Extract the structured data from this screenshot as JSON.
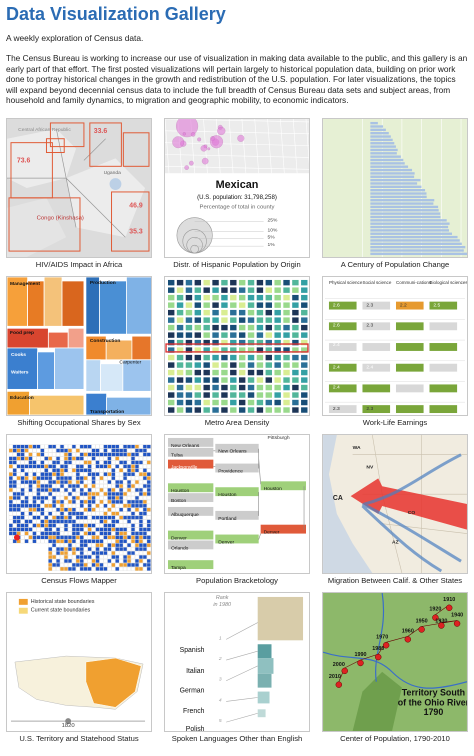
{
  "header": {
    "title": "Data Visualization Gallery",
    "subtitle": "A weekly exploration of Census data.",
    "intro": "The Census Bureau is working to increase our use of visualization in making data available to the public, and this gallery is an early part of that effort. The first posted visualizations will pertain largely to historical population data, building on prior work done to portray historical changes in the growth and redistribution of the U.S. population. For later visualizations, the topics will expand beyond decennial census data to include the full breadth of Census Bureau data sets and subject areas, from household and family dynamics, to migration and geographic mobility, to economic indicators."
  },
  "gallery": {
    "items": [
      {
        "caption": "HIV/AIDS Impact in Africa",
        "labels": [
          "Central African Republic",
          "33.6",
          "73.6",
          "Uganda",
          "Congo (Kinshasa)",
          "46.9",
          "35.3"
        ]
      },
      {
        "caption": "Distr. of Hispanic Population by Origin",
        "labels": [
          "Mexican",
          "(U.S. population: 31,798,258)",
          "Percentage of total in county",
          "25%",
          "10%",
          "5%",
          "1%"
        ]
      },
      {
        "caption": "A Century of Population Change",
        "labels": []
      },
      {
        "caption": "Shifting Occupational Shares by Sex",
        "labels": [
          "Management",
          "Production",
          "Food prep",
          "Cooks",
          "Waiters",
          "Construction",
          "Carpenter",
          "Education",
          "Transportation"
        ]
      },
      {
        "caption": "Metro Area Density",
        "labels": []
      },
      {
        "caption": "Work-Life Earnings",
        "labels": [
          "Physical science",
          "Social science",
          "Communi-cations",
          "Biological sciences",
          "2.6",
          "2.3",
          "2.2",
          "2.5",
          "2.6",
          "2.3",
          "2.4",
          "2.4",
          "2.4",
          "2.4",
          "2.3",
          "2.3"
        ]
      },
      {
        "caption": "Census Flows Mapper",
        "labels": []
      },
      {
        "caption": "Population Bracketology",
        "labels": [
          "Pittsburgh",
          "New Orleans",
          "Tulsa",
          "Jacksonville",
          "Houston",
          "Boston",
          "Albuquerque",
          "Denver",
          "Orlando",
          "Tampa",
          "New Orleans",
          "Providence",
          "Houston",
          "Portland",
          "Denver",
          "Houston",
          "Denver"
        ]
      },
      {
        "caption": "Migration Between Calif. & Other States",
        "labels": [
          "WA",
          "NV",
          "CA",
          "CO",
          "AZ"
        ]
      },
      {
        "caption": "U.S. Territory and Statehood Status",
        "labels": [
          "Historical state boundaries",
          "Current state boundaries",
          "1820"
        ]
      },
      {
        "caption": "Spoken Languages Other than English",
        "labels": [
          "Rank",
          "in 1980",
          "Spanish",
          "Italian",
          "German",
          "French",
          "Polish",
          "1",
          "2",
          "3",
          "4",
          "5"
        ]
      },
      {
        "caption": "Center of Population, 1790-2010",
        "labels": [
          "1910",
          "1920",
          "1930",
          "1940",
          "1950",
          "1960",
          "1970",
          "1980",
          "1990",
          "2000",
          "2010",
          "Territory South",
          "of the Ohio River",
          "1790"
        ]
      }
    ]
  }
}
